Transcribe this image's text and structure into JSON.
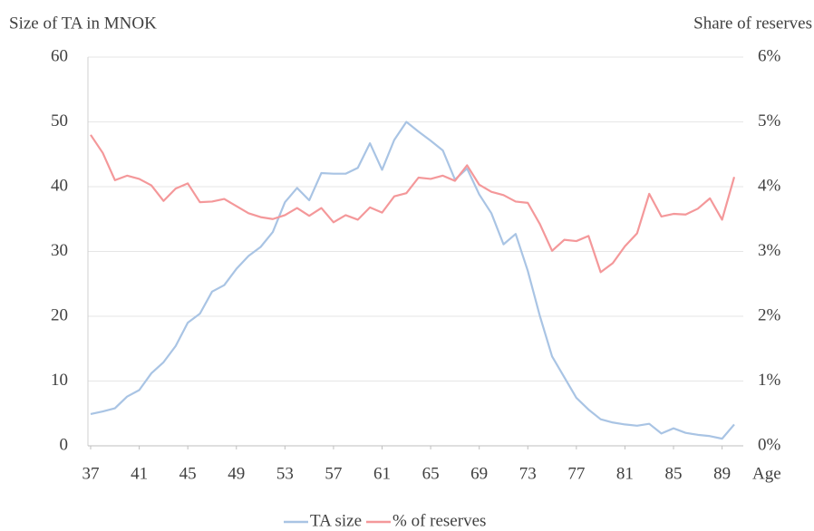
{
  "chart_data": {
    "type": "line",
    "y_label": "Size of TA in MNOK",
    "y2_label": "Share of reserves",
    "x_label": "Age",
    "x": [
      37,
      38,
      39,
      40,
      41,
      42,
      43,
      44,
      45,
      46,
      47,
      48,
      49,
      50,
      51,
      52,
      53,
      54,
      55,
      56,
      57,
      58,
      59,
      60,
      61,
      62,
      63,
      64,
      65,
      66,
      67,
      68,
      69,
      70,
      71,
      72,
      73,
      74,
      75,
      76,
      77,
      78,
      79,
      80,
      81,
      82,
      83,
      84,
      85,
      86,
      87,
      88,
      89,
      90
    ],
    "xlim": [
      37,
      90
    ],
    "xticks": [
      37,
      41,
      45,
      49,
      53,
      57,
      61,
      65,
      69,
      73,
      77,
      81,
      85,
      89
    ],
    "ylim": [
      0,
      60
    ],
    "yticks": [
      0,
      10,
      20,
      30,
      40,
      50,
      60
    ],
    "y2lim": [
      0,
      6
    ],
    "y2ticks": [
      {
        "value": 0,
        "label": "0%"
      },
      {
        "value": 1,
        "label": "1%"
      },
      {
        "value": 2,
        "label": "2%"
      },
      {
        "value": 3,
        "label": "3%"
      },
      {
        "value": 4,
        "label": "4%"
      },
      {
        "value": 5,
        "label": "5%"
      },
      {
        "value": 6,
        "label": "6%"
      }
    ],
    "grid": true,
    "legend": "bottom",
    "series": [
      {
        "name": "TA size",
        "color": "#a9c4e4",
        "axis": "y",
        "values": [
          4.9,
          5.3,
          5.8,
          7.6,
          8.6,
          11.2,
          12.9,
          15.4,
          19.0,
          20.4,
          23.8,
          24.8,
          27.3,
          29.3,
          30.7,
          33.0,
          37.6,
          39.8,
          37.9,
          42.1,
          42.0,
          42.0,
          42.9,
          46.7,
          42.6,
          47.2,
          50.0,
          48.5,
          47.1,
          45.6,
          41.1,
          42.8,
          38.8,
          35.9,
          31.1,
          32.7,
          27.0,
          20.0,
          13.8,
          10.6,
          7.4,
          5.6,
          4.1,
          3.6,
          3.3,
          3.1,
          3.4,
          1.9,
          2.7,
          2.0,
          1.7,
          1.5,
          1.1,
          3.3
        ]
      },
      {
        "name": "% of reserves",
        "color": "#f4989a",
        "axis": "y2",
        "values": [
          4.8,
          4.52,
          4.1,
          4.17,
          4.12,
          4.02,
          3.78,
          3.97,
          4.05,
          3.76,
          3.77,
          3.81,
          3.7,
          3.59,
          3.53,
          3.5,
          3.56,
          3.67,
          3.55,
          3.67,
          3.45,
          3.56,
          3.49,
          3.68,
          3.6,
          3.85,
          3.9,
          4.14,
          4.12,
          4.17,
          4.09,
          4.33,
          4.03,
          3.92,
          3.87,
          3.77,
          3.75,
          3.42,
          3.01,
          3.18,
          3.16,
          3.24,
          2.68,
          2.82,
          3.08,
          3.28,
          3.89,
          3.54,
          3.58,
          3.57,
          3.66,
          3.82,
          3.49,
          4.15
        ]
      }
    ]
  }
}
